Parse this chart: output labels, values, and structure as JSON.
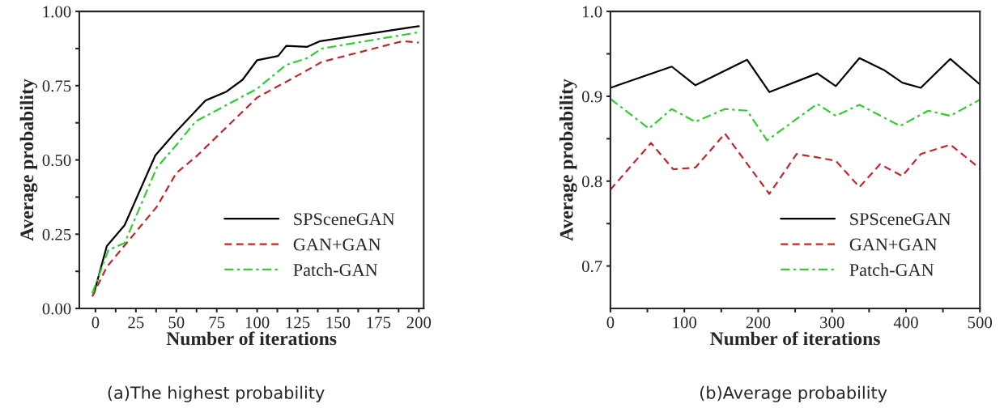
{
  "chart_data": [
    {
      "type": "line",
      "xlabel": "Number of iterations",
      "ylabel": "Average probability",
      "xlim": [
        -10,
        203
      ],
      "ylim": [
        0,
        1
      ],
      "xticks": [
        0,
        {
          "value": 12.5,
          "label": null
        },
        25,
        {
          "value": 37.5,
          "label": null
        },
        50,
        {
          "value": 62.5,
          "label": null
        },
        75,
        {
          "value": 87.5,
          "label": null
        },
        100,
        {
          "value": 112.5,
          "label": null
        },
        125,
        {
          "value": 137.5,
          "label": null
        },
        150,
        {
          "value": 162.5,
          "label": null
        },
        175,
        {
          "value": 187.5,
          "label": null
        },
        200
      ],
      "yticks": [
        {
          "value": 0,
          "label": "0.00"
        },
        {
          "value": 0.125,
          "label": null
        },
        {
          "value": 0.25,
          "label": "0.25"
        },
        {
          "value": 0.375,
          "label": null
        },
        {
          "value": 0.5,
          "label": "0.50"
        },
        {
          "value": 0.625,
          "label": null
        },
        {
          "value": 0.75,
          "label": "0.75"
        },
        {
          "value": 0.875,
          "label": null
        },
        {
          "value": 1,
          "label": "1.00"
        }
      ],
      "legend": "bottom right",
      "grid": false,
      "annotations": [
        "(a)The highest probability"
      ],
      "series": [
        {
          "name": "SPSceneGAN",
          "color": "#000000",
          "line_style": "solid",
          "x": [
            -1,
            7,
            18,
            37,
            49,
            68,
            81,
            91,
            100,
            113,
            118,
            131,
            139,
            193,
            200
          ],
          "values": [
            0.05,
            0.21,
            0.28,
            0.515,
            0.59,
            0.7,
            0.73,
            0.77,
            0.836,
            0.85,
            0.884,
            0.881,
            0.9,
            0.945,
            0.95
          ]
        },
        {
          "name": "GAN+GAN",
          "color": "#c0282d",
          "line_style": "dashed",
          "x": [
            -2,
            7,
            20,
            38,
            50,
            62,
            100,
            125,
            140,
            190,
            200
          ],
          "values": [
            0.04,
            0.14,
            0.225,
            0.343,
            0.456,
            0.51,
            0.71,
            0.784,
            0.83,
            0.9,
            0.895
          ]
        },
        {
          "name": "Patch-GAN",
          "color": "#33cc33",
          "line_style": "dashdot",
          "x": [
            -2,
            8,
            18,
            38,
            50,
            62,
            76,
            100,
            118,
            131,
            140,
            200
          ],
          "values": [
            0.05,
            0.197,
            0.22,
            0.475,
            0.55,
            0.63,
            0.67,
            0.74,
            0.82,
            0.843,
            0.875,
            0.93
          ]
        }
      ]
    },
    {
      "type": "line",
      "xlabel": "Number of iterations",
      "ylabel": "Average probability",
      "xlim": [
        0,
        500
      ],
      "ylim": [
        0.65,
        1.0
      ],
      "xticks": [
        0,
        {
          "value": 50,
          "label": null
        },
        100,
        {
          "value": 150,
          "label": null
        },
        200,
        {
          "value": 250,
          "label": null
        },
        300,
        {
          "value": 350,
          "label": null
        },
        400,
        {
          "value": 450,
          "label": null
        },
        500
      ],
      "yticks": [
        {
          "value": 0.7,
          "label": "0.7"
        },
        {
          "value": 0.75,
          "label": null
        },
        {
          "value": 0.8,
          "label": "0.8"
        },
        {
          "value": 0.85,
          "label": null
        },
        {
          "value": 0.9,
          "label": "0.9"
        },
        {
          "value": 0.95,
          "label": null
        },
        {
          "value": 1.0,
          "label": "1.0"
        }
      ],
      "legend": "bottom right",
      "grid": false,
      "annotations": [
        "(b)Average probability"
      ],
      "series": [
        {
          "name": "SPSceneGAN",
          "color": "#000000",
          "line_style": "solid",
          "x": [
            0,
            83,
            115,
            185,
            215,
            280,
            305,
            337,
            370,
            395,
            420,
            460,
            500
          ],
          "values": [
            0.91,
            0.935,
            0.913,
            0.943,
            0.905,
            0.927,
            0.912,
            0.945,
            0.931,
            0.916,
            0.91,
            0.944,
            0.914
          ]
        },
        {
          "name": "GAN+GAN",
          "color": "#c0282d",
          "line_style": "dashed",
          "x": [
            0,
            55,
            85,
            115,
            155,
            215,
            252,
            280,
            305,
            337,
            365,
            395,
            420,
            460,
            500
          ],
          "values": [
            0.79,
            0.845,
            0.814,
            0.816,
            0.856,
            0.785,
            0.832,
            0.828,
            0.824,
            0.793,
            0.82,
            0.806,
            0.832,
            0.843,
            0.815
          ]
        },
        {
          "name": "Patch-GAN",
          "color": "#33cc33",
          "line_style": "dashdot",
          "x": [
            0,
            52,
            83,
            115,
            155,
            185,
            212,
            280,
            305,
            337,
            392,
            430,
            460,
            500
          ],
          "values": [
            0.897,
            0.862,
            0.885,
            0.87,
            0.885,
            0.883,
            0.848,
            0.891,
            0.877,
            0.89,
            0.865,
            0.883,
            0.877,
            0.896
          ]
        }
      ]
    }
  ]
}
